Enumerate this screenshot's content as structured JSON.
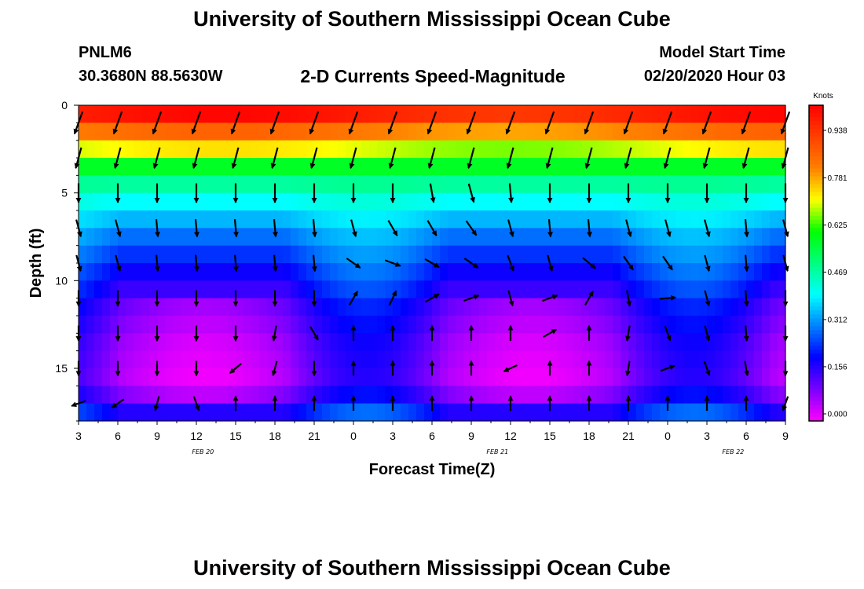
{
  "header": {
    "title": "University of Southern Mississippi Ocean Cube",
    "station_id": "PNLM6",
    "station_coords": "30.3680N 88.5630W",
    "subtitle": "2-D Currents Speed-Magnitude",
    "model_label": "Model Start Time",
    "model_time": "02/20/2020 Hour 03"
  },
  "footer": {
    "title": "University of Southern Mississippi Ocean Cube"
  },
  "chart_data": {
    "type": "heatmap",
    "title": "2-D Currents Speed-Magnitude",
    "xlabel": "Forecast Time(Z)",
    "ylabel": "Depth (ft)",
    "x_tick_labels": [
      "3",
      "6",
      "9",
      "12",
      "15",
      "18",
      "21",
      "0",
      "3",
      "6",
      "9",
      "12",
      "15",
      "18",
      "21",
      "0",
      "3",
      "6",
      "9"
    ],
    "x_hours": [
      0,
      54
    ],
    "ylim": [
      0,
      18
    ],
    "y_ticks": [
      0,
      5,
      10,
      15
    ],
    "y_tick_labels": [
      "0",
      "5",
      "10",
      "15"
    ],
    "date_labels": [
      {
        "text": "FEB 20",
        "hour": 9.5
      },
      {
        "text": "FEB 21",
        "hour": 32
      },
      {
        "text": "FEB 22",
        "hour": 50
      }
    ],
    "colorbar": {
      "title": "Knots",
      "range": [
        0.0,
        1.05
      ],
      "tick_values": [
        0.0,
        0.156,
        0.312,
        0.469,
        0.625,
        0.781,
        0.938
      ],
      "tick_labels": [
        "0.000",
        "0.156",
        "0.312",
        "0.469",
        "0.625",
        "0.781",
        "0.938"
      ],
      "colors": [
        "#ff00ff",
        "#7a00ff",
        "#0000ff",
        "#0080ff",
        "#00ffff",
        "#00ff80",
        "#00ff00",
        "#ffff00",
        "#ff8000",
        "#ff4000",
        "#ff0000"
      ]
    },
    "speed_profile_depths_ft": [
      0.5,
      1.5,
      2.5,
      3.5,
      4.5,
      5.5,
      6.5,
      7.5,
      8.5,
      9.5,
      10.5,
      11.5,
      12.5,
      13.5,
      14.5,
      15.5,
      16.5,
      17.5
    ],
    "speed_profile_knots": [
      1.0,
      0.85,
      0.72,
      0.6,
      0.5,
      0.42,
      0.36,
      0.3,
      0.25,
      0.2,
      0.16,
      0.12,
      0.1,
      0.08,
      0.07,
      0.06,
      0.1,
      0.18
    ],
    "arrow_hours": [
      0,
      3,
      6,
      9,
      12,
      15,
      18,
      21,
      24,
      27,
      30,
      33,
      36,
      39,
      42,
      45,
      48,
      51,
      54
    ],
    "arrow_depths_ft": [
      1,
      3,
      5,
      7,
      9,
      11,
      13,
      15,
      17
    ],
    "arrow_directions_deg": [
      [
        200,
        200,
        200,
        200,
        200,
        200,
        200,
        200,
        200,
        200,
        200,
        200,
        200,
        200,
        200,
        200,
        200,
        200,
        200
      ],
      [
        195,
        195,
        195,
        195,
        195,
        195,
        195,
        195,
        195,
        195,
        195,
        195,
        195,
        195,
        195,
        195,
        195,
        195,
        195
      ],
      [
        180,
        180,
        180,
        180,
        180,
        180,
        180,
        180,
        180,
        170,
        165,
        175,
        180,
        180,
        180,
        180,
        180,
        180,
        180
      ],
      [
        165,
        165,
        175,
        175,
        175,
        175,
        175,
        165,
        150,
        150,
        145,
        165,
        175,
        175,
        165,
        165,
        165,
        175,
        165
      ],
      [
        165,
        165,
        175,
        175,
        175,
        175,
        175,
        125,
        110,
        120,
        125,
        160,
        165,
        130,
        145,
        145,
        165,
        175,
        165
      ],
      [
        180,
        180,
        180,
        180,
        180,
        180,
        180,
        30,
        25,
        60,
        70,
        165,
        70,
        30,
        170,
        85,
        165,
        175,
        180
      ],
      [
        180,
        180,
        180,
        180,
        180,
        190,
        150,
        0,
        0,
        0,
        0,
        0,
        60,
        0,
        190,
        160,
        165,
        175,
        180
      ],
      [
        180,
        180,
        180,
        180,
        230,
        195,
        180,
        0,
        0,
        0,
        0,
        245,
        0,
        0,
        190,
        70,
        160,
        170,
        180
      ],
      [
        250,
        235,
        195,
        160,
        0,
        0,
        0,
        0,
        0,
        0,
        0,
        0,
        0,
        0,
        0,
        0,
        0,
        0,
        200
      ]
    ],
    "arrow_magnitudes_knots": [
      1.0,
      0.8,
      0.6,
      0.45,
      0.35,
      0.3,
      0.25,
      0.2,
      0.2
    ]
  }
}
